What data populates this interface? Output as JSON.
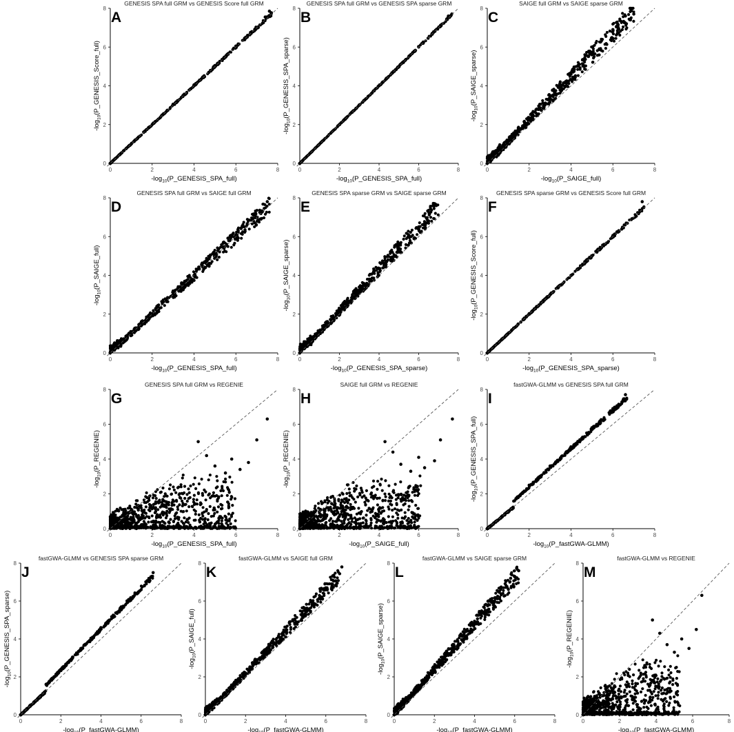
{
  "figure": {
    "background": "#ffffff",
    "point_color": "#000000",
    "reference_line": "y = x (dashed)"
  },
  "chart_data": [
    {
      "id": "A",
      "type": "scatter",
      "title": "GENESIS SPA full GRM vs GENESIS Score full GRM",
      "xlabel": {
        "pre": "-log",
        "sub": "10",
        "post": "(P_GENESIS_SPA_full)"
      },
      "ylabel": {
        "pre": "-log",
        "sub": "10",
        "post": "(P_GENESIS_Score_full)"
      },
      "xlim": [
        0,
        8
      ],
      "ylim": [
        0,
        8
      ],
      "xticks": [
        0,
        2,
        4,
        6,
        8
      ],
      "yticks": [
        0,
        2,
        4,
        6,
        8
      ],
      "pattern": {
        "kind": "tight",
        "slope": 1.0,
        "spread": 0.06,
        "xmax": 7.7,
        "n": 380
      },
      "points": [
        [
          0.0,
          0.0
        ],
        [
          1.0,
          1.0
        ],
        [
          2.0,
          2.0
        ],
        [
          3.0,
          3.05
        ],
        [
          4.0,
          4.05
        ],
        [
          5.0,
          5.05
        ],
        [
          6.0,
          6.05
        ],
        [
          7.4,
          7.55
        ],
        [
          7.6,
          7.85
        ]
      ]
    },
    {
      "id": "B",
      "type": "scatter",
      "title": "GENESIS SPA full GRM vs GENESIS SPA sparse GRM",
      "xlabel": {
        "pre": "-log",
        "sub": "10",
        "post": "(P_GENESIS_SPA_full)"
      },
      "ylabel": {
        "pre": "-log",
        "sub": "10",
        "post": "(P_GENESIS_SPA_sparse)"
      },
      "xlim": [
        0,
        8
      ],
      "ylim": [
        0,
        8
      ],
      "xticks": [
        0,
        2,
        4,
        6,
        8
      ],
      "yticks": [
        0,
        2,
        4,
        6,
        8
      ],
      "pattern": {
        "kind": "tight",
        "slope": 1.0,
        "spread": 0.04,
        "xmax": 7.7,
        "n": 380
      },
      "points": [
        [
          0.0,
          0.0
        ],
        [
          1.0,
          1.0
        ],
        [
          2.0,
          2.0
        ],
        [
          3.0,
          3.0
        ],
        [
          4.0,
          4.0
        ],
        [
          5.0,
          5.0
        ],
        [
          6.0,
          6.0
        ],
        [
          7.5,
          7.6
        ]
      ]
    },
    {
      "id": "C",
      "type": "scatter",
      "title": "SAIGE full GRM vs SAIGE sparse GRM",
      "xlabel": {
        "pre": "-log",
        "sub": "10",
        "post": "(P_SAIGE_full)"
      },
      "ylabel": {
        "pre": "-log",
        "sub": "10",
        "post": "(P_SAIGE_sparse)"
      },
      "xlim": [
        0,
        8
      ],
      "ylim": [
        0,
        8
      ],
      "xticks": [
        0,
        2,
        4,
        6,
        8
      ],
      "yticks": [
        0,
        2,
        4,
        6,
        8
      ],
      "pattern": {
        "kind": "band",
        "slope": 1.12,
        "spread": 0.45,
        "xmax": 7.0,
        "n": 520
      },
      "points": [
        [
          0.0,
          0.0
        ],
        [
          1.0,
          1.1
        ],
        [
          2.0,
          2.3
        ],
        [
          3.0,
          3.4
        ],
        [
          4.0,
          4.6
        ],
        [
          5.0,
          5.6
        ],
        [
          6.0,
          6.9
        ],
        [
          6.6,
          7.6
        ],
        [
          7.0,
          7.7
        ]
      ]
    },
    {
      "id": "D",
      "type": "scatter",
      "title": "GENESIS SPA full GRM vs SAIGE full GRM",
      "xlabel": {
        "pre": "-log",
        "sub": "10",
        "post": "(P_GENESIS_SPA_full)"
      },
      "ylabel": {
        "pre": "-log",
        "sub": "10",
        "post": "(P_SAIGE_full)"
      },
      "xlim": [
        0,
        8
      ],
      "ylim": [
        0,
        8
      ],
      "xticks": [
        0,
        2,
        4,
        6,
        8
      ],
      "yticks": [
        0,
        2,
        4,
        6,
        8
      ],
      "pattern": {
        "kind": "band",
        "slope": 1.0,
        "spread": 0.35,
        "xmax": 7.6,
        "n": 520
      },
      "points": [
        [
          0.0,
          0.0
        ],
        [
          1.0,
          1.0
        ],
        [
          2.0,
          2.0
        ],
        [
          3.0,
          3.0
        ],
        [
          4.0,
          4.0
        ],
        [
          5.0,
          5.0
        ],
        [
          6.0,
          6.0
        ],
        [
          7.5,
          7.8
        ]
      ]
    },
    {
      "id": "E",
      "type": "scatter",
      "title": "GENESIS SPA sparse GRM vs SAIGE sparse GRM",
      "xlabel": {
        "pre": "-log",
        "sub": "10",
        "post": "(P_GENESIS_SPA_sparse)"
      },
      "ylabel": {
        "pre": "-log",
        "sub": "10",
        "post": "(P_SAIGE_sparse)"
      },
      "xlim": [
        0,
        8
      ],
      "ylim": [
        0,
        8
      ],
      "xticks": [
        0,
        2,
        4,
        6,
        8
      ],
      "yticks": [
        0,
        2,
        4,
        6,
        8
      ],
      "pattern": {
        "kind": "band",
        "slope": 1.08,
        "spread": 0.4,
        "xmax": 7.0,
        "n": 520
      },
      "points": [
        [
          0.0,
          0.0
        ],
        [
          1.0,
          1.05
        ],
        [
          2.0,
          2.15
        ],
        [
          3.0,
          3.25
        ],
        [
          4.0,
          4.35
        ],
        [
          5.0,
          5.4
        ],
        [
          6.0,
          6.5
        ],
        [
          6.8,
          7.7
        ]
      ]
    },
    {
      "id": "F",
      "type": "scatter",
      "title": "GENESIS SPA sparse GRM vs GENESIS Score full GRM",
      "xlabel": {
        "pre": "-log",
        "sub": "10",
        "post": "(P_GENESIS_SPA_sparse)"
      },
      "ylabel": {
        "pre": "-log",
        "sub": "10",
        "post": "(P_GENESIS_Score_full)"
      },
      "xlim": [
        0,
        8
      ],
      "ylim": [
        0,
        8
      ],
      "xticks": [
        0,
        2,
        4,
        6,
        8
      ],
      "yticks": [
        0,
        2,
        4,
        6,
        8
      ],
      "pattern": {
        "kind": "tight",
        "slope": 1.0,
        "spread": 0.07,
        "xmax": 7.5,
        "n": 380
      },
      "points": [
        [
          0.0,
          0.0
        ],
        [
          1.0,
          1.0
        ],
        [
          2.0,
          2.0
        ],
        [
          3.0,
          3.0
        ],
        [
          4.0,
          4.0
        ],
        [
          5.0,
          5.0
        ],
        [
          6.0,
          6.05
        ],
        [
          7.4,
          7.8
        ]
      ]
    },
    {
      "id": "G",
      "type": "scatter",
      "title": "GENESIS SPA full GRM vs REGENIE",
      "xlabel": {
        "pre": "-log",
        "sub": "10",
        "post": "(P_GENESIS_SPA_full)"
      },
      "ylabel": {
        "pre": "-log",
        "sub": "10",
        "post": "(P_REGENIE)"
      },
      "xlim": [
        0,
        8
      ],
      "ylim": [
        0,
        8
      ],
      "xticks": [
        0,
        2,
        4,
        6,
        8
      ],
      "yticks": [
        0,
        2,
        4,
        6,
        8
      ],
      "pattern": {
        "kind": "cloud",
        "slope": 0.75,
        "spread": 1.1,
        "xmax": 6.0,
        "n": 900
      },
      "points": [
        [
          4.2,
          5.0
        ],
        [
          4.6,
          4.2
        ],
        [
          5.0,
          3.6
        ],
        [
          5.5,
          3.2
        ],
        [
          5.8,
          4.0
        ],
        [
          6.2,
          3.4
        ],
        [
          6.6,
          3.8
        ],
        [
          7.0,
          5.1
        ],
        [
          7.5,
          6.3
        ]
      ]
    },
    {
      "id": "H",
      "type": "scatter",
      "title": "SAIGE full GRM vs REGENIE",
      "xlabel": {
        "pre": "-log",
        "sub": "10",
        "post": "(P_SAIGE_full)"
      },
      "ylabel": {
        "pre": "-log",
        "sub": "10",
        "post": "(P_REGENIE)"
      },
      "xlim": [
        0,
        8
      ],
      "ylim": [
        0,
        8
      ],
      "xticks": [
        0,
        2,
        4,
        6,
        8
      ],
      "yticks": [
        0,
        2,
        4,
        6,
        8
      ],
      "pattern": {
        "kind": "cloud",
        "slope": 0.75,
        "spread": 1.1,
        "xmax": 6.1,
        "n": 900
      },
      "points": [
        [
          4.3,
          5.0
        ],
        [
          4.7,
          4.4
        ],
        [
          5.1,
          3.7
        ],
        [
          5.6,
          3.3
        ],
        [
          6.0,
          4.1
        ],
        [
          6.3,
          3.5
        ],
        [
          6.8,
          3.9
        ],
        [
          7.1,
          5.1
        ],
        [
          7.7,
          6.3
        ]
      ]
    },
    {
      "id": "I",
      "type": "scatter",
      "title": "fastGWA-GLMM vs GENESIS SPA full GRM",
      "xlabel": {
        "pre": "-log",
        "sub": "10",
        "post": "(P_fastGWA-GLMM)"
      },
      "ylabel": {
        "pre": "-log",
        "sub": "10",
        "post": "(P_GENESIS_SPA_full)"
      },
      "xlim": [
        0,
        8
      ],
      "ylim": [
        0,
        8
      ],
      "xticks": [
        0,
        2,
        4,
        6,
        8
      ],
      "yticks": [
        0,
        2,
        4,
        6,
        8
      ],
      "pattern": {
        "kind": "kink",
        "slope": 1.1,
        "spread": 0.08,
        "xmax": 6.7,
        "n": 420
      },
      "points": [
        [
          0.0,
          0.0
        ],
        [
          1.2,
          1.2
        ],
        [
          1.3,
          1.6
        ],
        [
          2.0,
          2.5
        ],
        [
          3.0,
          3.6
        ],
        [
          4.0,
          4.7
        ],
        [
          5.0,
          5.8
        ],
        [
          6.0,
          6.9
        ],
        [
          6.6,
          7.7
        ]
      ]
    },
    {
      "id": "J",
      "type": "scatter",
      "title": "fastGWA-GLMM vs GENESIS SPA sparse GRM",
      "xlabel": {
        "pre": "-log",
        "sub": "10",
        "post": "(P_fastGWA-GLMM)"
      },
      "ylabel": {
        "pre": "-log",
        "sub": "10",
        "post": "(P_GENESIS_SPA_sparse)"
      },
      "xlim": [
        0,
        8
      ],
      "ylim": [
        0,
        8
      ],
      "xticks": [
        0,
        2,
        4,
        6,
        8
      ],
      "yticks": [
        0,
        2,
        4,
        6,
        8
      ],
      "pattern": {
        "kind": "kink",
        "slope": 1.08,
        "spread": 0.08,
        "xmax": 6.6,
        "n": 420
      },
      "points": [
        [
          0.0,
          0.0
        ],
        [
          1.2,
          1.2
        ],
        [
          1.3,
          1.55
        ],
        [
          2.0,
          2.4
        ],
        [
          3.0,
          3.5
        ],
        [
          4.0,
          4.6
        ],
        [
          5.0,
          5.6
        ],
        [
          6.0,
          6.6
        ],
        [
          6.6,
          7.5
        ]
      ]
    },
    {
      "id": "K",
      "type": "scatter",
      "title": "fastGWA-GLMM vs SAIGE full GRM",
      "xlabel": {
        "pre": "-log",
        "sub": "10",
        "post": "(P_fastGWA-GLMM)"
      },
      "ylabel": {
        "pre": "-log",
        "sub": "10",
        "post": "(P_SAIGE_full)"
      },
      "xlim": [
        0,
        8
      ],
      "ylim": [
        0,
        8
      ],
      "xticks": [
        0,
        2,
        4,
        6,
        8
      ],
      "yticks": [
        0,
        2,
        4,
        6,
        8
      ],
      "pattern": {
        "kind": "band",
        "slope": 1.1,
        "spread": 0.35,
        "xmax": 6.7,
        "n": 520
      },
      "points": [
        [
          0.0,
          0.0
        ],
        [
          1.0,
          1.1
        ],
        [
          2.0,
          2.2
        ],
        [
          3.0,
          3.3
        ],
        [
          4.0,
          4.4
        ],
        [
          5.0,
          5.5
        ],
        [
          6.0,
          6.7
        ],
        [
          6.8,
          7.8
        ]
      ]
    },
    {
      "id": "L",
      "type": "scatter",
      "title": "fastGWA-GLMM vs SAIGE sparse GRM",
      "xlabel": {
        "pre": "-log",
        "sub": "10",
        "post": "(P_fastGWA-GLMM)"
      },
      "ylabel": {
        "pre": "-log",
        "sub": "10",
        "post": "(P_SAIGE_sparse)"
      },
      "xlim": [
        0,
        8
      ],
      "ylim": [
        0,
        8
      ],
      "xticks": [
        0,
        2,
        4,
        6,
        8
      ],
      "yticks": [
        0,
        2,
        4,
        6,
        8
      ],
      "pattern": {
        "kind": "band",
        "slope": 1.2,
        "spread": 0.4,
        "xmax": 6.2,
        "n": 520
      },
      "points": [
        [
          0.0,
          0.0
        ],
        [
          1.0,
          1.2
        ],
        [
          2.0,
          2.4
        ],
        [
          3.0,
          3.6
        ],
        [
          4.0,
          4.8
        ],
        [
          5.0,
          6.0
        ],
        [
          5.8,
          7.2
        ],
        [
          6.2,
          7.6
        ]
      ]
    },
    {
      "id": "M",
      "type": "scatter",
      "title": "fastGWA-GLMM  vs REGENIE",
      "xlabel": {
        "pre": "-log",
        "sub": "10",
        "post": "(P_fastGWA-GLMM)"
      },
      "ylabel": {
        "pre": "-log",
        "sub": "10",
        "post": "(P_REGENIE)"
      },
      "xlim": [
        0,
        8
      ],
      "ylim": [
        0,
        8
      ],
      "xticks": [
        0,
        2,
        4,
        6,
        8
      ],
      "yticks": [
        0,
        2,
        4,
        6,
        8
      ],
      "pattern": {
        "kind": "cloud",
        "slope": 0.85,
        "spread": 1.1,
        "xmax": 5.3,
        "n": 900
      },
      "points": [
        [
          3.8,
          5.0
        ],
        [
          4.2,
          4.3
        ],
        [
          4.6,
          3.7
        ],
        [
          5.0,
          3.3
        ],
        [
          5.4,
          4.0
        ],
        [
          5.8,
          3.5
        ],
        [
          6.2,
          4.5
        ],
        [
          6.5,
          6.3
        ]
      ]
    }
  ]
}
